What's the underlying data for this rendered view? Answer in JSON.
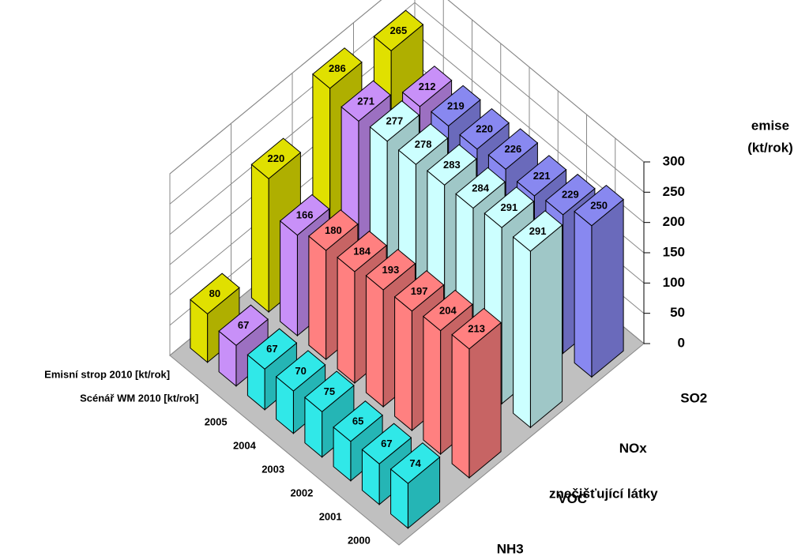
{
  "chart_data": {
    "type": "bar3d",
    "x_label": "znečišťující látky",
    "y_label": [
      "emise",
      "(kt/rok)"
    ],
    "categories": [
      "NH3",
      "VOC",
      "NOx",
      "SO2"
    ],
    "series": [
      {
        "name": "Emisní strop 2010 [kt/rok]",
        "color": "#e0e000",
        "values": [
          80,
          220,
          286,
          265
        ]
      },
      {
        "name": "Scénář WM 2010 [kt/rok]",
        "color": "#c890f8",
        "values": [
          67,
          166,
          271,
          212
        ]
      },
      {
        "name": "2005",
        "color": [
          "#30e8e8",
          "#ff8080",
          "#ccffff",
          "#8888f0"
        ],
        "values": [
          67,
          180,
          277,
          219
        ]
      },
      {
        "name": "2004",
        "color": [
          "#30e8e8",
          "#ff8080",
          "#ccffff",
          "#8888f0"
        ],
        "values": [
          70,
          184,
          278,
          220
        ]
      },
      {
        "name": "2003",
        "color": [
          "#30e8e8",
          "#ff8080",
          "#ccffff",
          "#8888f0"
        ],
        "values": [
          75,
          193,
          283,
          226
        ]
      },
      {
        "name": "2002",
        "color": [
          "#30e8e8",
          "#ff8080",
          "#ccffff",
          "#8888f0"
        ],
        "values": [
          65,
          197,
          284,
          221
        ]
      },
      {
        "name": "2001",
        "color": [
          "#30e8e8",
          "#ff8080",
          "#ccffff",
          "#8888f0"
        ],
        "values": [
          67,
          204,
          291,
          229
        ]
      },
      {
        "name": "2000",
        "color": [
          "#30e8e8",
          "#ff8080",
          "#ccffff",
          "#8888f0"
        ],
        "values": [
          74,
          213,
          291,
          250
        ]
      }
    ],
    "ylim": [
      0,
      300
    ],
    "yticks": [
      0,
      50,
      100,
      150,
      200,
      250,
      300
    ],
    "grid": true
  }
}
